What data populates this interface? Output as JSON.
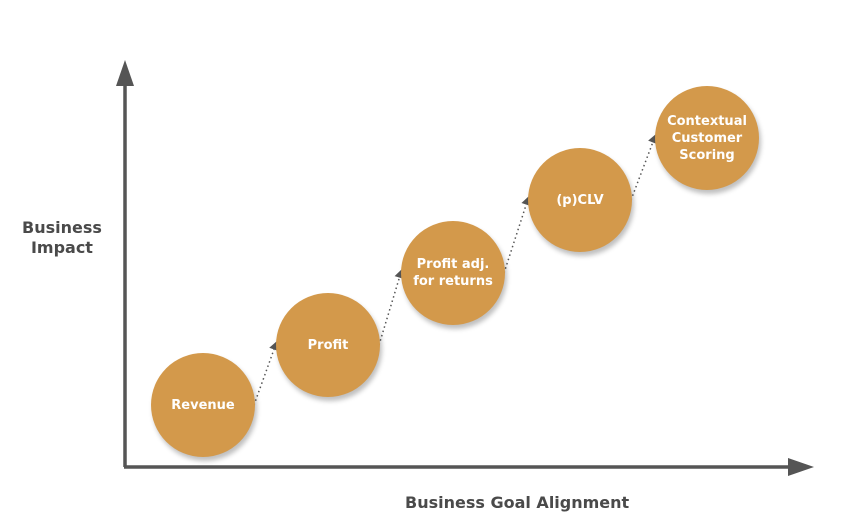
{
  "y_axis_label": "Business\nImpact",
  "x_axis_label": "Business Goal Alignment",
  "colors": {
    "circle": "#D3994B",
    "axis": "#555555",
    "text": "#ffffff"
  },
  "steps": [
    {
      "label": "Revenue"
    },
    {
      "label": "Profit"
    },
    {
      "label": "Profit adj.\nfor returns"
    },
    {
      "label": "(p)CLV"
    },
    {
      "label": "Contextual\nCustomer\nScoring"
    }
  ]
}
